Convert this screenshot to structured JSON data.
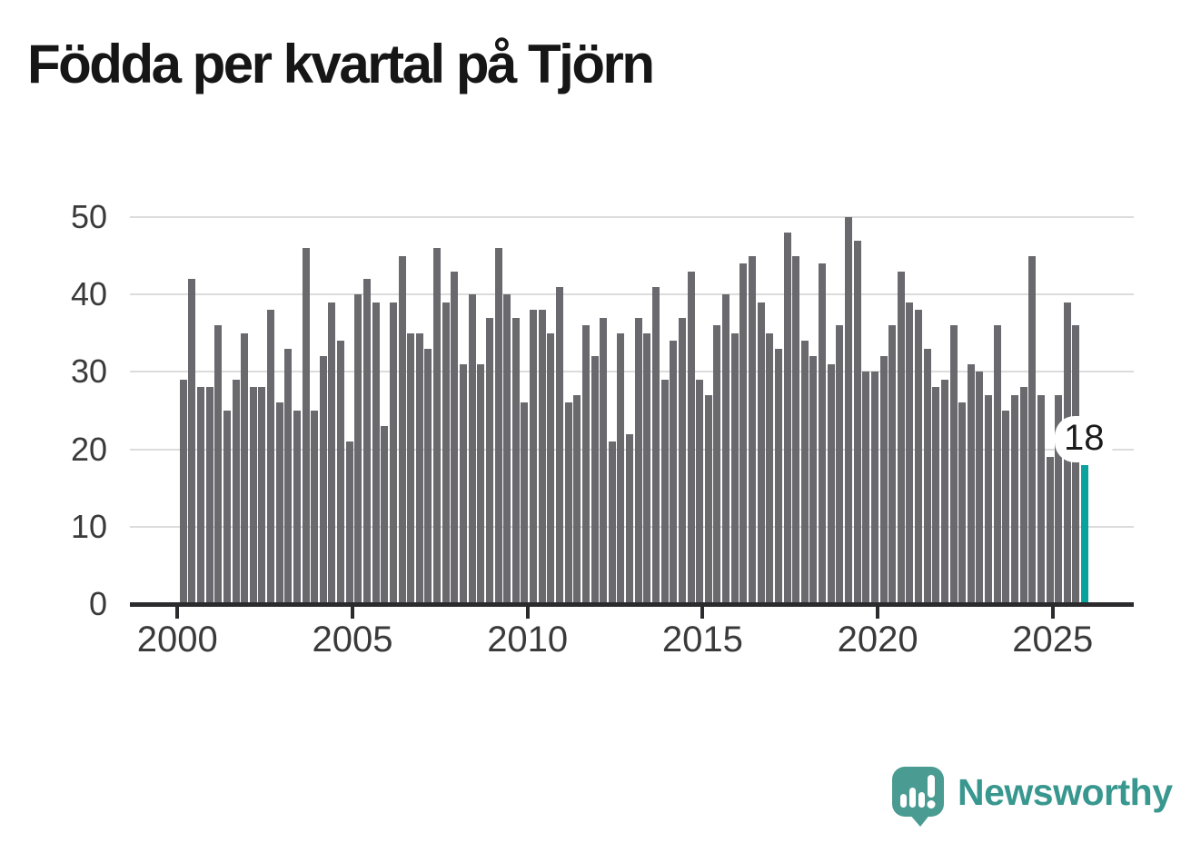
{
  "title": "Födda per kvartal på Tjörn",
  "chart_data": {
    "type": "bar",
    "title": "Födda per kvartal på Tjörn",
    "period": "quarterly",
    "start_year": 2000,
    "quarters_per_year": 4,
    "x_tick_labels": [
      "2000",
      "2005",
      "2010",
      "2015",
      "2020",
      "2025"
    ],
    "y_tick_labels": [
      "0",
      "10",
      "20",
      "30",
      "40",
      "50"
    ],
    "ylim": [
      0,
      50
    ],
    "grid": "horizontal",
    "legend": "none",
    "bar_color": "#69696e",
    "highlight_color": "#00a19c",
    "values": [
      29,
      42,
      28,
      28,
      36,
      25,
      29,
      35,
      28,
      28,
      38,
      26,
      33,
      25,
      46,
      25,
      32,
      39,
      34,
      21,
      40,
      42,
      39,
      23,
      39,
      45,
      35,
      35,
      33,
      46,
      39,
      43,
      31,
      40,
      31,
      37,
      46,
      40,
      37,
      26,
      38,
      38,
      35,
      41,
      26,
      27,
      36,
      32,
      37,
      21,
      35,
      22,
      37,
      35,
      41,
      29,
      34,
      37,
      43,
      29,
      27,
      36,
      40,
      35,
      44,
      45,
      39,
      35,
      33,
      48,
      45,
      34,
      32,
      44,
      31,
      36,
      50,
      47,
      30,
      30,
      32,
      36,
      43,
      39,
      38,
      33,
      28,
      29,
      36,
      26,
      31,
      30,
      27,
      36,
      25,
      27,
      28,
      45,
      27,
      19,
      27,
      39,
      36,
      18
    ],
    "highlight_index": 103,
    "annotation": {
      "index": 103,
      "label": "18"
    }
  },
  "branding": {
    "name": "Newsworthy",
    "logo_icon": "speech-bubble-bar-chart-icon",
    "color": "#38978e",
    "icon_color": "#4a9b92"
  }
}
